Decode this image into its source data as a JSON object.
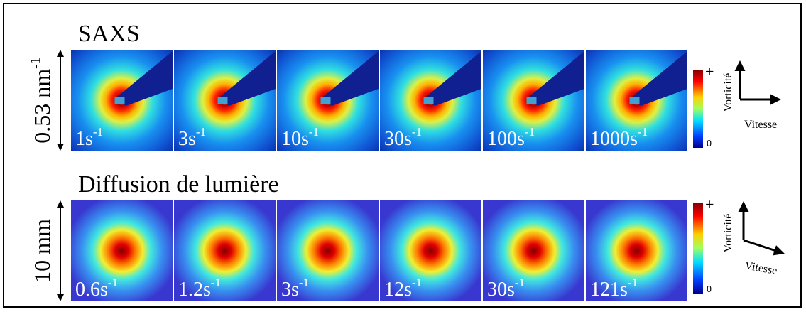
{
  "rows": [
    {
      "title": "SAXS",
      "scale": {
        "text": "0.53 nm",
        "exponent": "-1"
      },
      "panels": [
        {
          "rate": "1s",
          "exponent": "-1"
        },
        {
          "rate": "3s",
          "exponent": "-1"
        },
        {
          "rate": "10s",
          "exponent": "-1"
        },
        {
          "rate": "30s",
          "exponent": "-1"
        },
        {
          "rate": "100s",
          "exponent": "-1"
        },
        {
          "rate": "1000s",
          "exponent": "-1"
        }
      ],
      "colorbar": {
        "max": "+",
        "min": "0"
      },
      "axes": {
        "vertical": "Vorticité",
        "horizontal": "Vitesse"
      }
    },
    {
      "title": "Diffusion de lumière",
      "scale": {
        "text": "10 mm"
      },
      "panels": [
        {
          "rate": "0.6s",
          "exponent": "-1"
        },
        {
          "rate": "1.2s",
          "exponent": "-1"
        },
        {
          "rate": "3s",
          "exponent": "-1"
        },
        {
          "rate": "12s",
          "exponent": "-1"
        },
        {
          "rate": "30s",
          "exponent": "-1"
        },
        {
          "rate": "121s",
          "exponent": "-1"
        }
      ],
      "colorbar": {
        "max": "+",
        "min": "0"
      },
      "axes": {
        "vertical": "Vorticité",
        "horizontal": "Vitesse"
      }
    }
  ]
}
